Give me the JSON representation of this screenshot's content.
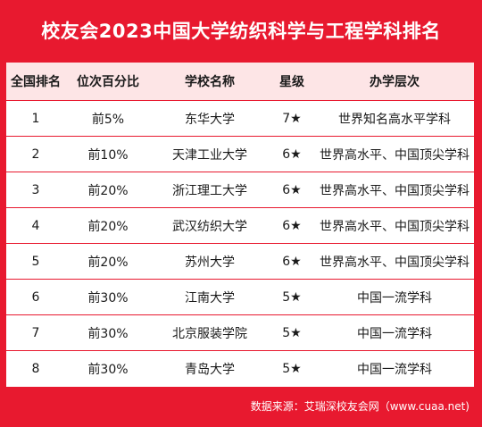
{
  "title": "校友会2023中国大学纺织科学与工程学科排名",
  "headers": [
    "全国排名",
    "位次百分比",
    "学校名称",
    "星级",
    "办学层次"
  ],
  "rows": [
    {
      "rank": "1",
      "pct": "前5%",
      "school": "东华大学",
      "stars": "7★",
      "level": "世界知名高水平学科"
    },
    {
      "rank": "2",
      "pct": "前10%",
      "school": "天津工业大学",
      "stars": "6★",
      "level": "世界高水平、中国顶尖学科"
    },
    {
      "rank": "3",
      "pct": "前20%",
      "school": "浙江理工大学",
      "stars": "6★",
      "level": "世界高水平、中国顶尖学科"
    },
    {
      "rank": "4",
      "pct": "前20%",
      "school": "武汉纺织大学",
      "stars": "6★",
      "level": "世界高水平、中国顶尖学科"
    },
    {
      "rank": "5",
      "pct": "前20%",
      "school": "苏州大学",
      "stars": "6★",
      "level": "世界高水平、中国顶尖学科"
    },
    {
      "rank": "6",
      "pct": "前30%",
      "school": "江南大学",
      "stars": "5★",
      "level": "中国一流学科"
    },
    {
      "rank": "7",
      "pct": "前30%",
      "school": "北京服装学院",
      "stars": "5★",
      "level": "中国一流学科"
    },
    {
      "rank": "8",
      "pct": "前30%",
      "school": "青岛大学",
      "stars": "5★",
      "level": "中国一流学科"
    }
  ],
  "source": "数据来源：艾瑞深校友会网（www.cuaa.net)",
  "colors": {
    "accent": "#e8192f",
    "header_bg": "#fde5e6"
  }
}
